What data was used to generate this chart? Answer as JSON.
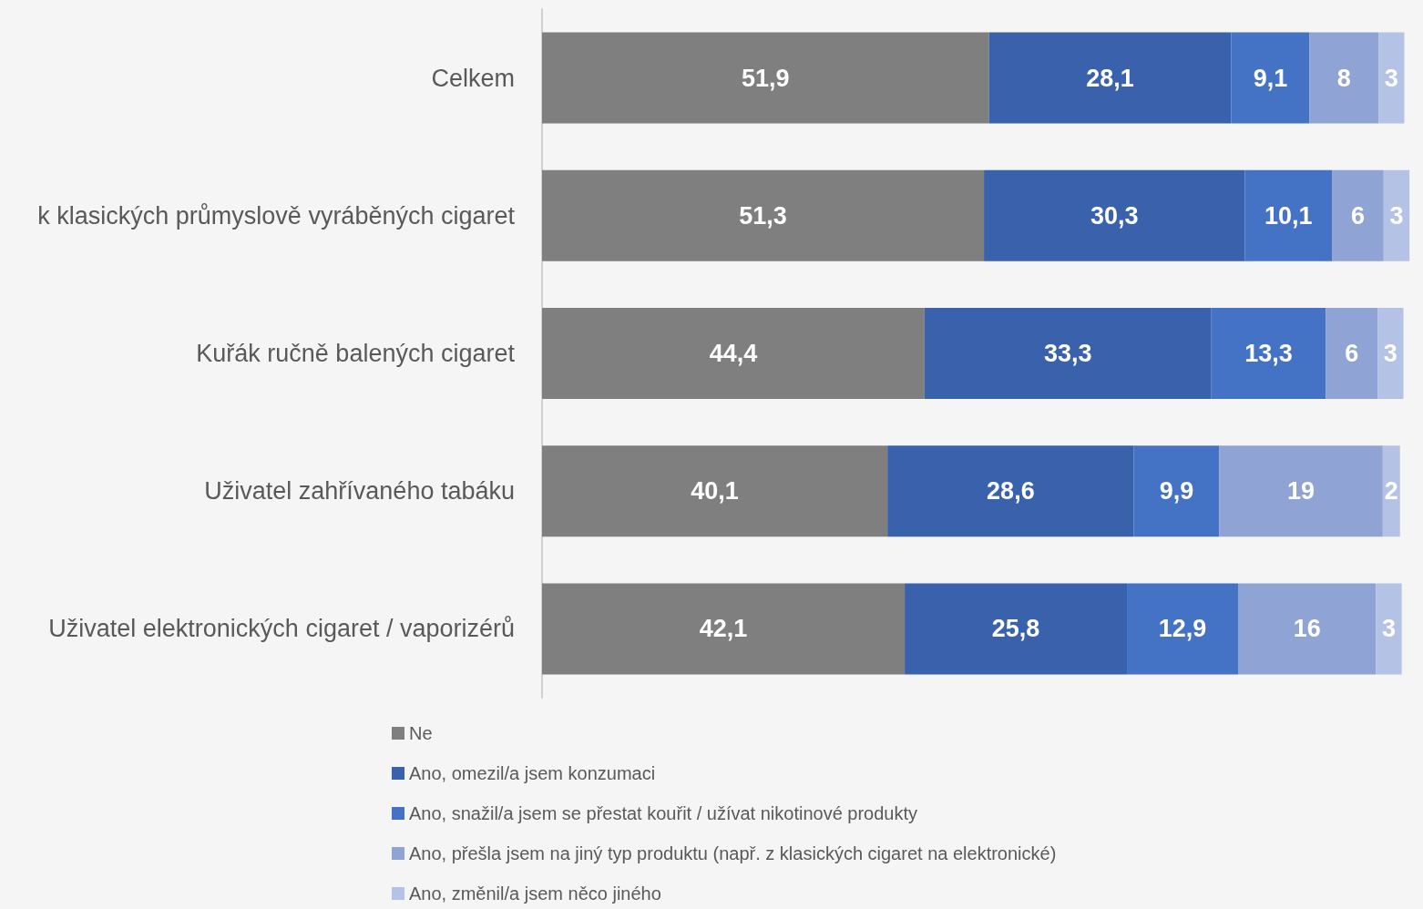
{
  "chart_data": {
    "type": "bar",
    "orientation": "horizontal",
    "stacked": true,
    "grid": false,
    "legend": "bottom",
    "categories": [
      "Celkem",
      "k klasických průmyslově vyráběných cigaret",
      "Kuřák ručně balených cigaret",
      "Uživatel zahřívaného tabáku",
      "Uživatel elektronických cigaret / vaporizérů"
    ],
    "xlim": [
      0,
      101
    ],
    "series": [
      {
        "name": "Ne",
        "color": "#7f7f7f",
        "values": [
          51.9,
          51.3,
          44.4,
          40.1,
          42.1
        ],
        "value_labels": [
          "51,9",
          "51,3",
          "44,4",
          "40,1",
          "42,1"
        ]
      },
      {
        "name": "Ano, omezil/a jsem konzumaci",
        "color": "#3a62ac",
        "values": [
          28.1,
          30.3,
          33.3,
          28.6,
          25.8
        ],
        "value_labels": [
          "28,1",
          "30,3",
          "33,3",
          "28,6",
          "25,8"
        ]
      },
      {
        "name": "Ano, snažil/a jsem se přestat kouřit / užívat nikotinové produkty",
        "color": "#4472c4",
        "values": [
          9.1,
          10.1,
          13.3,
          9.9,
          12.9
        ],
        "value_labels": [
          "9,1",
          "10,1",
          "13,3",
          "9,9",
          "12,9"
        ]
      },
      {
        "name": "Ano, přešla jsem na jiný typ produktu (např. z klasických cigaret na elektronické)",
        "color": "#8fa3d5",
        "values": [
          8,
          6,
          6,
          19,
          16
        ],
        "value_labels": [
          "8",
          "6",
          "6",
          "19",
          "16"
        ]
      },
      {
        "name": "Ano, změnil/a jsem něco jiného",
        "color": "#b4c2e5",
        "values": [
          3,
          3,
          3,
          2,
          3
        ],
        "value_labels": [
          "3",
          "3",
          "3",
          "2",
          "3"
        ]
      }
    ]
  }
}
